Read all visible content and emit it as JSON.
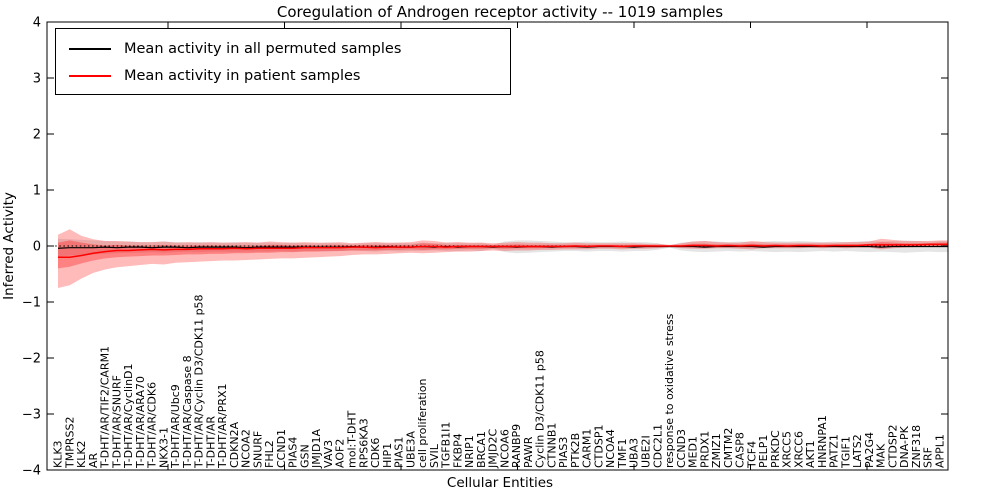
{
  "title": "Coregulation of Androgen receptor activity -- 1019 samples",
  "axes": {
    "xlabel": "Cellular Entities",
    "ylabel": "Inferred Activity",
    "ylim": [
      -4,
      4
    ],
    "yticks": [
      {
        "value": 4,
        "label": "4"
      },
      {
        "value": 3,
        "label": "3"
      },
      {
        "value": 2,
        "label": "2"
      },
      {
        "value": 1,
        "label": "1"
      },
      {
        "value": 0,
        "label": "0"
      },
      {
        "value": -1,
        "label": "−1"
      },
      {
        "value": -2,
        "label": "−2"
      },
      {
        "value": -3,
        "label": "−3"
      },
      {
        "value": -4,
        "label": "−4"
      }
    ]
  },
  "legend": {
    "items": [
      {
        "label": "Mean activity in all permuted samples",
        "color": "#000000"
      },
      {
        "label": "Mean activity in patient samples",
        "color": "#ff0000"
      }
    ]
  },
  "chart_data": {
    "type": "line",
    "title": "Coregulation of Androgen receptor activity -- 1019 samples",
    "xlabel": "Cellular Entities",
    "ylabel": "Inferred Activity",
    "ylim": [
      -4,
      4
    ],
    "grid": false,
    "legend_position": "upper left",
    "zero_reference_line": true,
    "categories": [
      "KLK3",
      "TMPRSS2",
      "KLK2",
      "AR",
      "T-DHT/AR/TIF2/CARM1",
      "T-DHT/AR/SNURF",
      "T-DHT/AR/CyclinD1",
      "T-DHT/AR/ARA70",
      "T-DHT/AR/CDK6",
      "NKX3-1",
      "T-DHT/AR/Ubc9",
      "T-DHT/AR/Caspase 8",
      "T-DHT/AR/Cyclin D3/CDK11 p58",
      "T-DHT/AR",
      "T-DHT/AR/PRX1",
      "CDKN2A",
      "NCOA2",
      "SNURF",
      "FHL2",
      "CCND1",
      "PIAS4",
      "GSN",
      "JMJD1A",
      "VAV3",
      "AOF2",
      "mol:T-DHT",
      "RPS6KA3",
      "CDK6",
      "HIP1",
      "PIAS1",
      "UBE3A",
      "cell proliferation",
      "SVIL",
      "TGFB1I1",
      "FKBP4",
      "NRIP1",
      "BRCA1",
      "JMJD2C",
      "NCOA6",
      "RANBP9",
      "PAWR",
      "Cyclin D3/CDK11 p58",
      "CTNNB1",
      "PIAS3",
      "PTK2B",
      "CARM1",
      "CTDSP1",
      "NCOA4",
      "TMF1",
      "UBA3",
      "UBE2I",
      "CDC2L1",
      "response to oxidative stress",
      "CCND3",
      "MED1",
      "PRDX1",
      "ZMIZ1",
      "CMTM2",
      "CASP8",
      "TCF4",
      "PELP1",
      "PRKDC",
      "XRCC5",
      "XRCC6",
      "AKT1",
      "HNRNPA1",
      "PATZ1",
      "TGIF1",
      "LATS2",
      "PA2G4",
      "MAK",
      "CTDSP2",
      "DNA-PK",
      "ZNF318",
      "SRF",
      "APPL1"
    ],
    "series": [
      {
        "id": "permuted-mean",
        "name": "Mean activity in all permuted samples",
        "color": "#000000",
        "width": 1.2,
        "values": [
          -0.04,
          -0.03,
          -0.03,
          -0.03,
          -0.02,
          -0.03,
          -0.02,
          -0.02,
          -0.03,
          -0.02,
          -0.02,
          -0.03,
          -0.02,
          -0.02,
          -0.02,
          -0.02,
          -0.03,
          -0.02,
          -0.02,
          -0.02,
          -0.02,
          -0.02,
          -0.02,
          -0.02,
          -0.02,
          -0.01,
          -0.02,
          -0.02,
          -0.01,
          -0.02,
          -0.02,
          -0.01,
          -0.02,
          -0.01,
          -0.02,
          -0.01,
          -0.01,
          -0.02,
          -0.01,
          -0.02,
          -0.01,
          -0.01,
          -0.02,
          -0.01,
          -0.01,
          -0.02,
          -0.01,
          -0.01,
          -0.01,
          -0.02,
          -0.01,
          -0.01,
          -0.01,
          -0.01,
          -0.01,
          -0.02,
          -0.01,
          -0.01,
          -0.01,
          -0.01,
          -0.02,
          -0.01,
          -0.01,
          -0.01,
          -0.01,
          -0.01,
          -0.01,
          -0.01,
          -0.01,
          -0.01,
          -0.02,
          -0.01,
          -0.01,
          -0.01,
          -0.01,
          -0.01
        ]
      },
      {
        "id": "patient-mean",
        "name": "Mean activity in patient samples",
        "color": "#ff0000",
        "width": 1.5,
        "values": [
          -0.2,
          -0.2,
          -0.17,
          -0.13,
          -0.1,
          -0.08,
          -0.08,
          -0.07,
          -0.06,
          -0.07,
          -0.06,
          -0.06,
          -0.05,
          -0.05,
          -0.05,
          -0.04,
          -0.05,
          -0.04,
          -0.04,
          -0.04,
          -0.04,
          -0.03,
          -0.03,
          -0.03,
          -0.03,
          -0.02,
          -0.02,
          -0.03,
          -0.02,
          -0.02,
          -0.02,
          -0.01,
          -0.01,
          -0.02,
          -0.01,
          -0.01,
          -0.01,
          -0.01,
          -0.01,
          -0.01,
          -0.01,
          -0.01,
          -0.01,
          -0.01,
          0.0,
          -0.01,
          0.0,
          0.0,
          -0.01,
          0.0,
          0.0,
          0.0,
          0.0,
          0.0,
          0.01,
          0.01,
          0.0,
          0.01,
          0.0,
          0.01,
          0.0,
          0.01,
          0.0,
          0.01,
          0.01,
          0.0,
          0.01,
          0.01,
          0.01,
          0.02,
          0.02,
          0.02,
          0.02,
          0.02,
          0.03,
          0.03
        ]
      }
    ],
    "bands": [
      {
        "id": "permuted-range",
        "name": "Permuted samples activity range",
        "color": "rgba(0,0,0,0.10)",
        "upper": [
          0.13,
          0.12,
          0.11,
          0.1,
          0.09,
          0.08,
          0.08,
          0.07,
          0.07,
          0.08,
          0.07,
          0.06,
          0.07,
          0.06,
          0.06,
          0.07,
          0.06,
          0.06,
          0.06,
          0.05,
          0.06,
          0.05,
          0.05,
          0.06,
          0.05,
          0.04,
          0.05,
          0.06,
          0.05,
          0.06,
          0.05,
          0.06,
          0.05,
          0.06,
          0.06,
          0.05,
          0.06,
          0.02,
          0.08,
          0.1,
          0.1,
          0.09,
          0.08,
          0.07,
          0.07,
          0.08,
          0.07,
          0.07,
          0.08,
          0.07,
          0.07,
          0.05,
          0.01,
          0.06,
          0.08,
          0.09,
          0.08,
          0.07,
          0.08,
          0.07,
          0.08,
          0.09,
          0.08,
          0.09,
          0.08,
          0.07,
          0.08,
          0.07,
          0.08,
          0.09,
          0.08,
          0.09,
          0.1,
          0.09,
          0.08,
          0.09
        ],
        "lower": [
          -0.19,
          -0.17,
          -0.16,
          -0.15,
          -0.14,
          -0.13,
          -0.12,
          -0.12,
          -0.11,
          -0.12,
          -0.11,
          -0.1,
          -0.11,
          -0.1,
          -0.1,
          -0.11,
          -0.1,
          -0.1,
          -0.1,
          -0.09,
          -0.1,
          -0.09,
          -0.09,
          -0.1,
          -0.09,
          -0.08,
          -0.09,
          -0.1,
          -0.09,
          -0.1,
          -0.09,
          -0.09,
          -0.08,
          -0.09,
          -0.09,
          -0.08,
          -0.09,
          -0.05,
          -0.11,
          -0.13,
          -0.12,
          -0.11,
          -0.1,
          -0.09,
          -0.09,
          -0.1,
          -0.09,
          -0.09,
          -0.1,
          -0.09,
          -0.09,
          -0.07,
          -0.03,
          -0.08,
          -0.1,
          -0.11,
          -0.1,
          -0.09,
          -0.1,
          -0.09,
          -0.1,
          -0.11,
          -0.1,
          -0.11,
          -0.1,
          -0.09,
          -0.1,
          -0.09,
          -0.1,
          -0.11,
          -0.1,
          -0.11,
          -0.12,
          -0.11,
          -0.1,
          -0.11
        ]
      },
      {
        "id": "patient-outer",
        "name": "Patient samples outer range",
        "color": "rgba(255,0,0,0.27)",
        "upper": [
          0.2,
          0.3,
          0.18,
          0.12,
          0.09,
          0.09,
          0.08,
          0.07,
          0.07,
          0.08,
          0.06,
          0.07,
          0.06,
          0.07,
          0.06,
          0.06,
          0.07,
          0.06,
          0.08,
          0.07,
          0.06,
          0.07,
          0.06,
          0.06,
          0.07,
          0.05,
          0.06,
          0.07,
          0.06,
          0.06,
          0.07,
          0.1,
          0.09,
          0.06,
          0.07,
          0.06,
          0.06,
          0.05,
          0.06,
          0.07,
          0.06,
          0.06,
          0.05,
          0.05,
          0.06,
          0.05,
          0.05,
          0.05,
          0.05,
          0.05,
          0.04,
          0.04,
          0.02,
          0.05,
          0.08,
          0.09,
          0.07,
          0.06,
          0.06,
          0.09,
          0.07,
          0.06,
          0.06,
          0.06,
          0.06,
          0.06,
          0.06,
          0.07,
          0.07,
          0.08,
          0.13,
          0.11,
          0.09,
          0.09,
          0.09,
          0.1
        ],
        "lower": [
          -0.75,
          -0.7,
          -0.58,
          -0.48,
          -0.42,
          -0.38,
          -0.36,
          -0.34,
          -0.32,
          -0.33,
          -0.3,
          -0.29,
          -0.28,
          -0.27,
          -0.26,
          -0.26,
          -0.25,
          -0.24,
          -0.23,
          -0.22,
          -0.22,
          -0.21,
          -0.2,
          -0.19,
          -0.18,
          -0.16,
          -0.15,
          -0.15,
          -0.14,
          -0.13,
          -0.12,
          -0.13,
          -0.12,
          -0.11,
          -0.1,
          -0.1,
          -0.09,
          -0.08,
          -0.09,
          -0.08,
          -0.08,
          -0.07,
          -0.07,
          -0.06,
          -0.06,
          -0.06,
          -0.05,
          -0.05,
          -0.06,
          -0.05,
          -0.05,
          -0.04,
          -0.02,
          -0.04,
          -0.05,
          -0.05,
          -0.04,
          -0.04,
          -0.05,
          -0.06,
          -0.04,
          -0.04,
          -0.04,
          -0.04,
          -0.03,
          -0.04,
          -0.03,
          -0.04,
          -0.03,
          -0.03,
          -0.06,
          -0.04,
          -0.03,
          -0.02,
          -0.02,
          -0.02
        ]
      },
      {
        "id": "patient-inner",
        "name": "Patient samples inner range",
        "color": "rgba(255,0,0,0.30)",
        "upper": [
          0.06,
          0.1,
          0.06,
          0.03,
          0.01,
          0.02,
          0.01,
          0.01,
          0.01,
          0.02,
          0.01,
          0.01,
          0.01,
          0.01,
          0.01,
          0.01,
          0.01,
          0.01,
          0.02,
          0.02,
          0.01,
          0.02,
          0.01,
          0.02,
          0.02,
          0.01,
          0.02,
          0.02,
          0.02,
          0.02,
          0.02,
          0.05,
          0.04,
          0.02,
          0.02,
          0.02,
          0.02,
          0.02,
          0.02,
          0.03,
          0.02,
          0.02,
          0.02,
          0.02,
          0.02,
          0.02,
          0.02,
          0.02,
          0.02,
          0.02,
          0.02,
          0.01,
          0.01,
          0.02,
          0.04,
          0.04,
          0.03,
          0.03,
          0.03,
          0.04,
          0.03,
          0.03,
          0.03,
          0.03,
          0.03,
          0.03,
          0.03,
          0.03,
          0.03,
          0.04,
          0.07,
          0.06,
          0.05,
          0.05,
          0.05,
          0.06
        ],
        "lower": [
          -0.4,
          -0.37,
          -0.31,
          -0.26,
          -0.22,
          -0.2,
          -0.19,
          -0.18,
          -0.17,
          -0.17,
          -0.16,
          -0.15,
          -0.15,
          -0.14,
          -0.14,
          -0.13,
          -0.13,
          -0.12,
          -0.12,
          -0.11,
          -0.11,
          -0.1,
          -0.1,
          -0.09,
          -0.09,
          -0.08,
          -0.08,
          -0.08,
          -0.07,
          -0.07,
          -0.06,
          -0.07,
          -0.06,
          -0.06,
          -0.05,
          -0.05,
          -0.05,
          -0.04,
          -0.05,
          -0.04,
          -0.04,
          -0.04,
          -0.03,
          -0.03,
          -0.03,
          -0.03,
          -0.02,
          -0.02,
          -0.03,
          -0.02,
          -0.02,
          -0.02,
          -0.01,
          -0.02,
          -0.02,
          -0.02,
          -0.02,
          -0.01,
          -0.02,
          -0.02,
          -0.01,
          -0.01,
          -0.01,
          -0.01,
          -0.01,
          -0.01,
          -0.01,
          -0.01,
          0.0,
          0.0,
          -0.02,
          -0.01,
          0.0,
          0.0,
          0.0,
          0.0
        ]
      }
    ]
  }
}
